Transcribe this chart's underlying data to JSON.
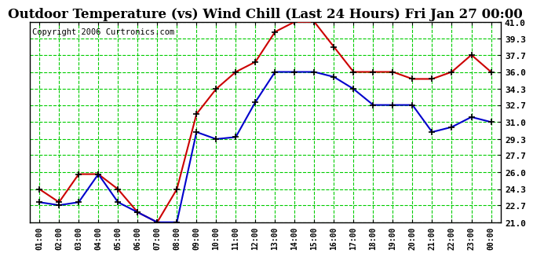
{
  "title": "Outdoor Temperature (vs) Wind Chill (Last 24 Hours) Fri Jan 27 00:00",
  "copyright": "Copyright 2006 Curtronics.com",
  "x_labels": [
    "01:00",
    "02:00",
    "03:00",
    "04:00",
    "05:00",
    "06:00",
    "07:00",
    "08:00",
    "09:00",
    "10:00",
    "11:00",
    "12:00",
    "13:00",
    "14:00",
    "15:00",
    "16:00",
    "17:00",
    "18:00",
    "19:00",
    "20:00",
    "21:00",
    "22:00",
    "23:00",
    "00:00"
  ],
  "temp_red": [
    24.3,
    23.0,
    25.8,
    25.8,
    24.3,
    22.0,
    21.0,
    24.3,
    31.8,
    34.3,
    36.0,
    37.0,
    40.0,
    41.0,
    41.0,
    38.5,
    36.0,
    36.0,
    36.0,
    35.3,
    35.3,
    36.0,
    37.7,
    36.0
  ],
  "temp_blue": [
    23.0,
    22.7,
    23.0,
    25.8,
    23.0,
    22.0,
    21.0,
    21.0,
    30.0,
    29.3,
    29.5,
    33.0,
    36.0,
    36.0,
    36.0,
    35.5,
    34.3,
    32.7,
    32.7,
    32.7,
    30.0,
    30.5,
    31.5,
    31.0
  ],
  "red_color": "#cc0000",
  "blue_color": "#0000cc",
  "marker_color": "#000000",
  "bg_color": "#ffffff",
  "grid_color": "#00cc00",
  "title_fontsize": 12,
  "copyright_fontsize": 7.5,
  "ylim": [
    21.0,
    41.0
  ],
  "yticks": [
    21.0,
    22.7,
    24.3,
    26.0,
    27.7,
    29.3,
    31.0,
    32.7,
    34.3,
    36.0,
    37.7,
    39.3,
    41.0
  ]
}
